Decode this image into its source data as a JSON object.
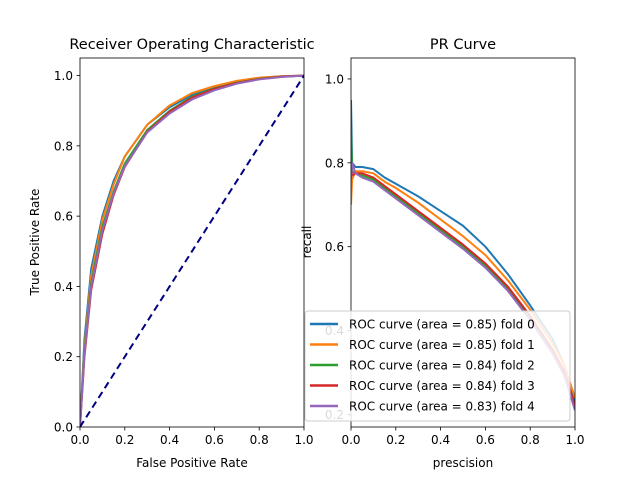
{
  "chart_data": [
    {
      "type": "line",
      "title": "Receiver Operating Characteristic",
      "xlabel": "False Positive Rate",
      "ylabel": "True Positive Rate",
      "xlim": [
        0,
        1.0
      ],
      "ylim": [
        0,
        1.05
      ],
      "xticks": [
        "0.0",
        "0.2",
        "0.4",
        "0.6",
        "0.8",
        "1.0"
      ],
      "yticks": [
        "0.0",
        "0.2",
        "0.4",
        "0.6",
        "0.8",
        "1.0"
      ],
      "grid": false,
      "series": [
        {
          "color": "#1f77b4",
          "x": [
            0,
            0.02,
            0.05,
            0.1,
            0.15,
            0.2,
            0.3,
            0.4,
            0.5,
            0.6,
            0.7,
            0.8,
            0.9,
            1.0
          ],
          "y": [
            0,
            0.25,
            0.45,
            0.6,
            0.7,
            0.77,
            0.86,
            0.91,
            0.945,
            0.968,
            0.983,
            0.993,
            0.998,
            1.0
          ]
        },
        {
          "color": "#ff7f0e",
          "x": [
            0,
            0.02,
            0.05,
            0.1,
            0.15,
            0.2,
            0.3,
            0.4,
            0.5,
            0.6,
            0.7,
            0.8,
            0.9,
            1.0
          ],
          "y": [
            0,
            0.23,
            0.43,
            0.59,
            0.69,
            0.77,
            0.86,
            0.915,
            0.95,
            0.97,
            0.985,
            0.994,
            0.998,
            1.0
          ]
        },
        {
          "color": "#2ca02c",
          "x": [
            0,
            0.02,
            0.05,
            0.1,
            0.15,
            0.2,
            0.3,
            0.4,
            0.5,
            0.6,
            0.7,
            0.8,
            0.9,
            1.0
          ],
          "y": [
            0,
            0.22,
            0.41,
            0.57,
            0.67,
            0.75,
            0.845,
            0.9,
            0.94,
            0.963,
            0.98,
            0.991,
            0.997,
            1.0
          ]
        },
        {
          "color": "#d62728",
          "x": [
            0,
            0.02,
            0.05,
            0.1,
            0.15,
            0.2,
            0.3,
            0.4,
            0.5,
            0.6,
            0.7,
            0.8,
            0.9,
            1.0
          ],
          "y": [
            0,
            0.2,
            0.39,
            0.55,
            0.66,
            0.74,
            0.84,
            0.897,
            0.937,
            0.962,
            0.979,
            0.99,
            0.997,
            1.0
          ]
        },
        {
          "color": "#9467bd",
          "x": [
            0,
            0.02,
            0.05,
            0.1,
            0.15,
            0.2,
            0.3,
            0.4,
            0.5,
            0.6,
            0.7,
            0.8,
            0.9,
            1.0
          ],
          "y": [
            0,
            0.21,
            0.4,
            0.56,
            0.665,
            0.742,
            0.838,
            0.892,
            0.932,
            0.958,
            0.977,
            0.989,
            0.996,
            1.0
          ]
        }
      ],
      "reference_line": {
        "x": [
          0,
          1
        ],
        "y": [
          0,
          1
        ],
        "color": "#000080",
        "style": "dashed"
      }
    },
    {
      "type": "line",
      "title": "PR Curve",
      "xlabel": "prescision",
      "ylabel": "recall",
      "xlim": [
        0,
        1.0
      ],
      "ylim": [
        0.17,
        1.05
      ],
      "xticks": [
        "0.0",
        "0.2",
        "0.4",
        "0.6",
        "0.8",
        "1.0"
      ],
      "yticks": [
        "0.2",
        "0.4",
        "0.6",
        "0.8",
        "1.0"
      ],
      "grid": false,
      "legend_position": "lower-right",
      "legend": [
        "ROC curve (area = 0.85) fold 0",
        "ROC curve (area = 0.85) fold 1",
        "ROC curve (area = 0.84) fold 2",
        "ROC curve (area = 0.84) fold 3",
        "ROC curve (area = 0.83) fold 4"
      ],
      "series": [
        {
          "color": "#1f77b4",
          "x": [
            0,
            0.005,
            0.02,
            0.05,
            0.1,
            0.15,
            0.2,
            0.3,
            0.4,
            0.5,
            0.6,
            0.7,
            0.8,
            0.9,
            0.95,
            1.0
          ],
          "y": [
            0.95,
            0.8,
            0.79,
            0.79,
            0.785,
            0.765,
            0.75,
            0.72,
            0.685,
            0.65,
            0.6,
            0.535,
            0.46,
            0.38,
            0.32,
            0.23
          ]
        },
        {
          "color": "#ff7f0e",
          "x": [
            0,
            0.005,
            0.02,
            0.05,
            0.1,
            0.15,
            0.2,
            0.3,
            0.4,
            0.5,
            0.6,
            0.7,
            0.8,
            0.9,
            0.95,
            1.0
          ],
          "y": [
            0.7,
            0.76,
            0.78,
            0.78,
            0.775,
            0.755,
            0.74,
            0.705,
            0.665,
            0.625,
            0.58,
            0.52,
            0.45,
            0.37,
            0.32,
            0.24
          ]
        },
        {
          "color": "#2ca02c",
          "x": [
            0,
            0.005,
            0.02,
            0.05,
            0.1,
            0.15,
            0.2,
            0.3,
            0.4,
            0.5,
            0.6,
            0.7,
            0.8,
            0.9,
            0.95,
            1.0
          ],
          "y": [
            0.88,
            0.78,
            0.775,
            0.77,
            0.76,
            0.74,
            0.72,
            0.68,
            0.64,
            0.6,
            0.555,
            0.5,
            0.43,
            0.35,
            0.3,
            0.21
          ]
        },
        {
          "color": "#d62728",
          "x": [
            0,
            0.005,
            0.02,
            0.05,
            0.1,
            0.15,
            0.2,
            0.3,
            0.4,
            0.5,
            0.6,
            0.7,
            0.8,
            0.9,
            0.95,
            1.0
          ],
          "y": [
            0.8,
            0.77,
            0.775,
            0.775,
            0.765,
            0.745,
            0.725,
            0.685,
            0.645,
            0.605,
            0.56,
            0.505,
            0.435,
            0.355,
            0.305,
            0.22
          ]
        },
        {
          "color": "#9467bd",
          "x": [
            0,
            0.005,
            0.02,
            0.05,
            0.1,
            0.15,
            0.2,
            0.3,
            0.4,
            0.5,
            0.6,
            0.7,
            0.8,
            0.9,
            0.95,
            1.0
          ],
          "y": [
            0.76,
            0.8,
            0.775,
            0.765,
            0.755,
            0.735,
            0.715,
            0.675,
            0.635,
            0.595,
            0.55,
            0.495,
            0.425,
            0.345,
            0.295,
            0.21
          ]
        }
      ]
    }
  ]
}
